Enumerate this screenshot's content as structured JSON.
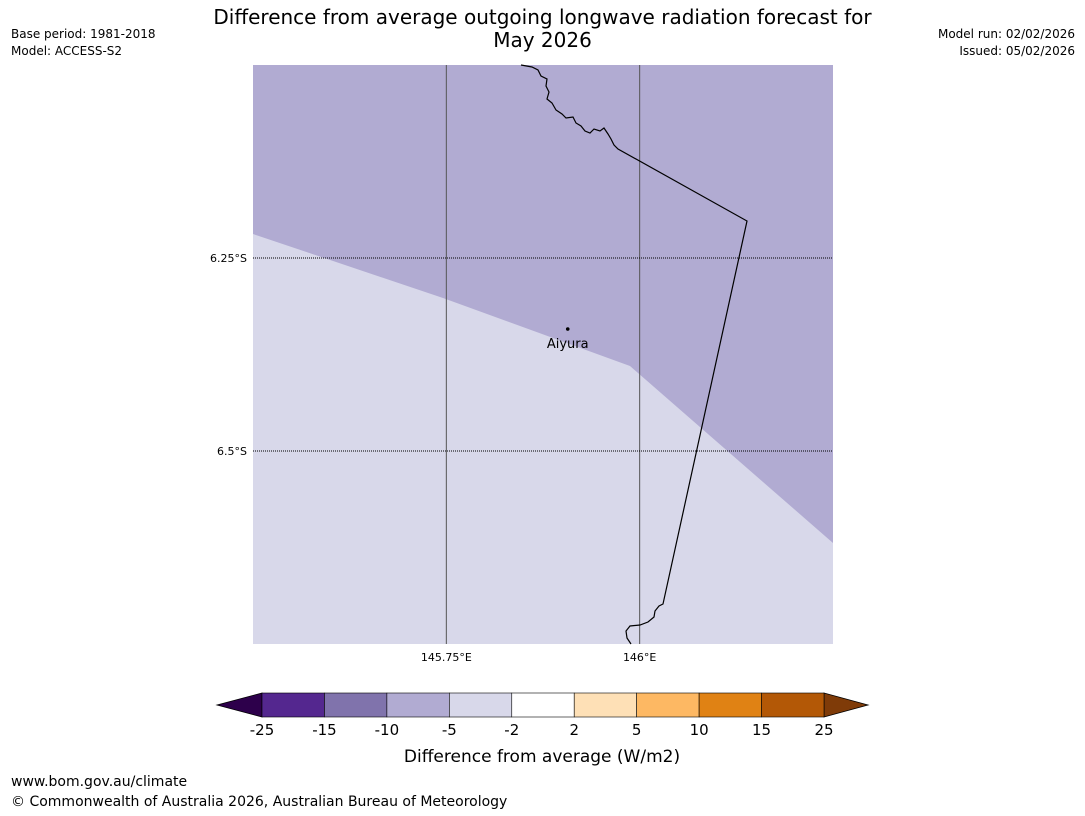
{
  "title": {
    "line1": "Difference from average outgoing longwave radiation forecast for",
    "line2": "May 2026"
  },
  "meta_left": {
    "base_period": "Base period: 1981-2018",
    "model": "Model: ACCESS-S2"
  },
  "meta_right": {
    "model_run": "Model run: 02/02/2026",
    "issued": "Issued: 05/02/2026"
  },
  "map": {
    "lon_range": [
      145.5,
      146.25
    ],
    "lat_range": [
      -6.75,
      -6.0
    ],
    "lon_ticks": [
      {
        "value": 145.75,
        "label": "145.75°E"
      },
      {
        "value": 146.0,
        "label": "146°E"
      }
    ],
    "lat_ticks": [
      {
        "value": -6.25,
        "label": "6.25°S"
      },
      {
        "value": -6.5,
        "label": "6.5°S"
      }
    ],
    "regions": [
      {
        "category": "-10 to -5",
        "color": "#b1abd2"
      },
      {
        "category": "-5 to -2",
        "color": "#d8d8ea"
      }
    ],
    "place": {
      "name": "Aiyura",
      "lon": 145.907,
      "lat": -6.342
    },
    "grid_colors": {
      "meridian": "#555555",
      "parallel": "#000000"
    }
  },
  "colorbar": {
    "label": "Difference from average (W/m2)",
    "ticks": [
      "-25",
      "-15",
      "-10",
      "-5",
      "-2",
      "2",
      "5",
      "10",
      "15",
      "25"
    ],
    "colors": [
      "#54278f",
      "#8073ac",
      "#b1abd2",
      "#d8d8ea",
      "#ffffff",
      "#fee0b6",
      "#fdb863",
      "#e08214",
      "#b35806"
    ],
    "extend_low_color": "#2d004b",
    "extend_high_color": "#7f3b08"
  },
  "footer": {
    "url": "www.bom.gov.au/climate",
    "copyright": "© Commonwealth of Australia 2026, Australian Bureau of Meteorology"
  }
}
